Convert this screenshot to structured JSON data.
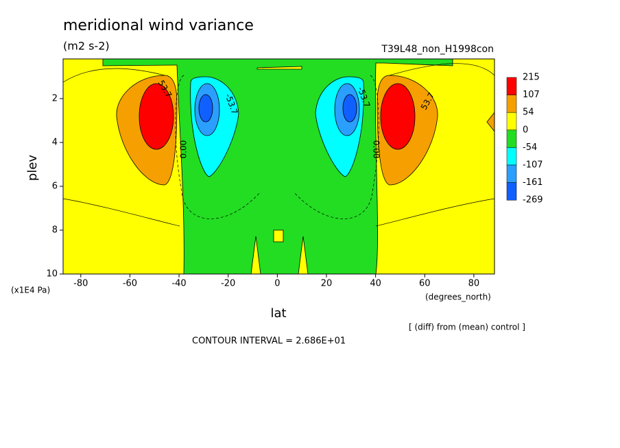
{
  "chart_data": {
    "type": "contour",
    "title": "meridional wind variance",
    "subtitle": "(m2 s-2)",
    "run_label": "T39L48_non_H1998con",
    "x_label": "lat",
    "y_label": "plev",
    "x_unit": "(degrees_north)",
    "y_unit": "(x1E4 Pa)",
    "note": "[ (diff) from (mean) control ]",
    "contour_interval": "CONTOUR INTERVAL = 2.686E+01",
    "xlim": [
      -87.2,
      88.4
    ],
    "xticks": [
      -80,
      -60,
      -40,
      -20,
      0,
      20,
      40,
      60,
      80
    ],
    "ylim": [
      10,
      0.19
    ],
    "yticks": [
      2,
      4,
      6,
      8,
      10
    ],
    "levels": [
      215,
      107,
      54,
      0,
      -54,
      -107,
      -161,
      -269
    ],
    "colors": [
      "#ff0000",
      "#f5a000",
      "#ffff00",
      "#22dd22",
      "#00ffff",
      "#2a9fff",
      "#1060ff"
    ],
    "contour_labels": [
      "53.7",
      "-53.7",
      "0.00",
      "-53.7",
      "0.00",
      "53.7"
    ]
  }
}
